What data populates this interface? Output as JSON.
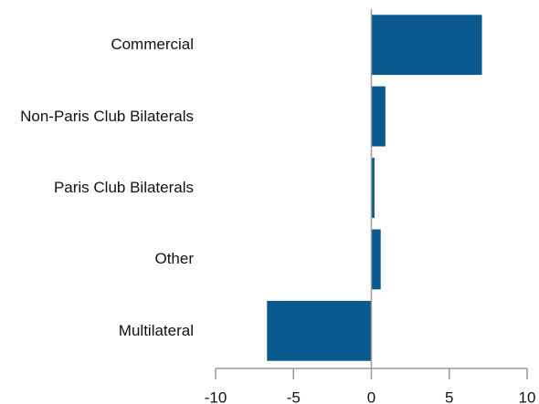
{
  "chart_data": {
    "type": "barh",
    "categories": [
      "Commercial",
      "Non-Paris Club Bilaterals",
      "Paris Club Bilaterals",
      "Other",
      "Multilateral"
    ],
    "values": [
      7.1,
      0.9,
      0.2,
      0.6,
      -6.7
    ],
    "color": "#0b5a8f",
    "xlim": [
      -10,
      10
    ],
    "xticks": [
      -10,
      -5,
      0,
      5,
      10
    ]
  }
}
